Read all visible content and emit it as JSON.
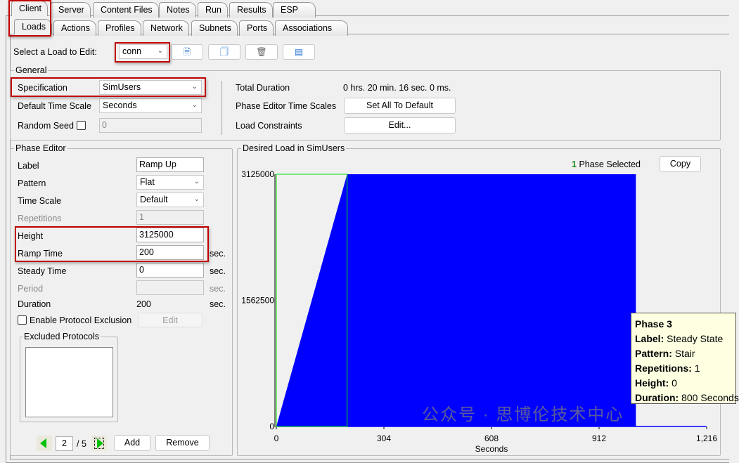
{
  "tabs_top": [
    "Client",
    "Server",
    "Content Files",
    "Notes",
    "Run",
    "Results",
    "ESP"
  ],
  "tabs_sub": [
    "Loads",
    "Actions",
    "Profiles",
    "Network",
    "Subnets",
    "Ports",
    "Associations"
  ],
  "load_select": {
    "label": "Select a Load to Edit:",
    "value": "conn"
  },
  "toolbar_icons": [
    "new-load-icon",
    "copy-load-icon",
    "delete-icon",
    "rename-icon"
  ],
  "general": {
    "title": "General",
    "specification_label": "Specification",
    "specification_value": "SimUsers",
    "time_scale_label": "Default Time Scale",
    "time_scale_value": "Seconds",
    "random_seed_label": "Random Seed",
    "random_seed_value": "0",
    "total_duration_label": "Total Duration",
    "total_duration_value": "0 hrs. 20 min. 16 sec. 0 ms.",
    "time_scales_label": "Phase Editor Time Scales",
    "set_default_button": "Set All To Default",
    "constraints_label": "Load Constraints",
    "constraints_button": "Edit..."
  },
  "phase_editor": {
    "title": "Phase Editor",
    "label_label": "Label",
    "label_value": "Ramp Up",
    "pattern_label": "Pattern",
    "pattern_value": "Flat",
    "time_scale_label": "Time Scale",
    "time_scale_value": "Default",
    "repetitions_label": "Repetitions",
    "repetitions_value": "1",
    "height_label": "Height",
    "height_value": "3125000",
    "ramp_label": "Ramp Time",
    "ramp_value": "200",
    "steady_label": "Steady Time",
    "steady_value": "0",
    "period_label": "Period",
    "period_value": "",
    "duration_label": "Duration",
    "duration_value": "200",
    "unit": "sec.",
    "exclusion_label": "Enable Protocol Exclusion",
    "exclusion_button": "Edit",
    "excluded_title": "Excluded Protocols",
    "page_current": "2",
    "page_total": "/ 5",
    "add_button": "Add",
    "remove_button": "Remove"
  },
  "chart_panel": {
    "title": "Desired Load in SimUsers",
    "selected_count": "1",
    "selected_text": "Phase Selected",
    "copy_button": "Copy"
  },
  "chart_data": {
    "type": "area",
    "xlabel": "Seconds",
    "ylabel": "",
    "xlim": [
      0,
      1216
    ],
    "ylim": [
      0,
      3125000
    ],
    "xticks": [
      "0",
      "304",
      "608",
      "912",
      "1,216"
    ],
    "yticks": [
      "0",
      "1562500",
      "3125000"
    ],
    "points": [
      [
        0,
        0
      ],
      [
        200,
        3125000
      ],
      [
        1016,
        3125000
      ],
      [
        1016,
        0
      ],
      [
        1216,
        0
      ]
    ],
    "selected_phase_range": [
      0,
      200
    ],
    "fill_color": "#0000ff",
    "selection_color": "#00e000"
  },
  "tooltip": {
    "title": "Phase 3",
    "label_k": "Label:",
    "label_v": "Steady State",
    "pattern_k": "Pattern:",
    "pattern_v": "Stair",
    "rep_k": "Repetitions:",
    "rep_v": "1",
    "height_k": "Height:",
    "height_v": "0",
    "dur_k": "Duration:",
    "dur_v": "800 Seconds"
  },
  "watermark": "公众号 · 思博伦技术中心"
}
